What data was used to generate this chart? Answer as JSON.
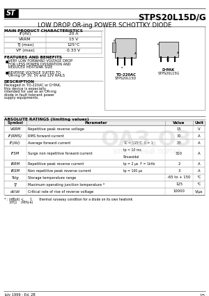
{
  "title_part": "STPS20L15D/G",
  "title_sub": "LOW DROP OR-ing POWER SCHOTTKY DIODE",
  "section_main": "MAIN PRODUCT CHARACTERISTICS",
  "main_chars": [
    [
      "IF(AV)",
      "20 A"
    ],
    [
      "VRRM",
      "15 V"
    ],
    [
      "TJ (max)",
      "125°C"
    ],
    [
      "VF (max)",
      "0.33 V"
    ]
  ],
  "section_features": "FEATURES AND BENEFITS",
  "features": [
    "VERY LOW FORWARD VOLTAGE DROP FOR LESS POWER DISSIPATION AND REDUCED HEATSINK SIZE",
    "REVERSE VOLTAGE SUITED TO OR-ing OF 3V, 5V and 12V RAILS"
  ],
  "section_desc": "DESCRIPTION",
  "desc_text": "Packaged in TO-220AC or D²PAK, this device is especially intended for use as an OR-ing diode in fault tolerant power supply equipments.",
  "pkg1_label": "TO-220AC\nSTPS20L15D",
  "pkg2_label": "D²PAK\nSTPS20L15G",
  "section_ratings": "ABSOLUTE RATINGS (limiting values)",
  "ratings_headers": [
    "Symbol",
    "Parameter",
    "Value",
    "Unit"
  ],
  "ratings": [
    [
      "VRRM",
      "Repetitive peak reverse voltage",
      "",
      "15",
      "V"
    ],
    [
      "IF(RMS)",
      "RMS forward current",
      "",
      "30",
      "A"
    ],
    [
      "IF(AV)",
      "Average forward current",
      "TC = 115°C  δ = 1",
      "20",
      "A"
    ],
    [
      "IFSM",
      "Surge non repetitive forward current",
      "tp = 10 ms\nSinusoidal",
      "310",
      "A"
    ],
    [
      "IRRM",
      "Repetitive peak reverse current",
      "tp = 2 μs  F = 1kHz",
      "2",
      "A"
    ],
    [
      "IRSM",
      "Non repetitive peak reverse current",
      "tp = 100 μs",
      "3",
      "A"
    ],
    [
      "Tstg",
      "Storage temperature range",
      "",
      "-65 to + 150",
      "°C"
    ],
    [
      "TJ",
      "Maximum operating junction temperature *",
      "",
      "125",
      "°C"
    ],
    [
      "dV/dt",
      "Critical rate of rise of reverse voltage",
      "",
      "10000",
      "V/μs"
    ]
  ],
  "footnote1": "* : (dPtot) <     1      thermal runaway condition for a diode on its own heatsink",
  "footnote2": "     (dTJ)    (Rthj-a)",
  "footer_left": "July 1999 - Ed. 2B",
  "footer_right": "1/5",
  "bg_color": "#ffffff"
}
